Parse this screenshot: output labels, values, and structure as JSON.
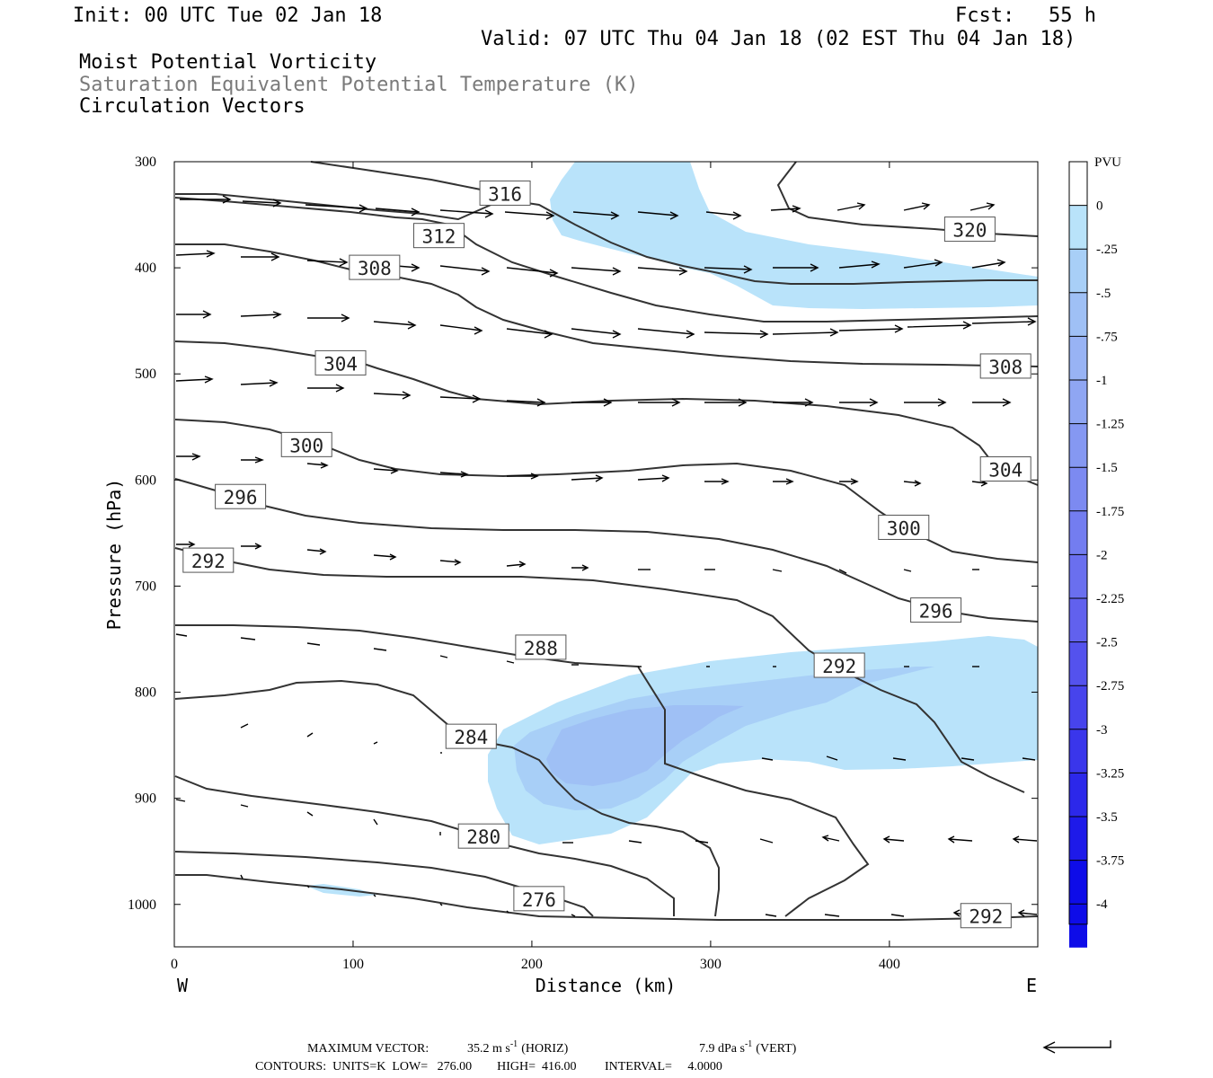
{
  "header": {
    "init": "Init: 00 UTC Tue 02 Jan 18",
    "fcst_label": "Fcst:",
    "fcst_value": "55 h",
    "valid": "Valid: 07 UTC Thu 04 Jan 18 (02 EST Thu 04 Jan 18)",
    "line1": "Moist Potential Vorticity",
    "line2": "Saturation Equivalent Potential Temperature (K)",
    "line3": "Circulation Vectors",
    "line2_color": "#7a7a7a"
  },
  "chart_data": {
    "type": "contour",
    "xlabel": "Distance (km)",
    "ylabel": "Pressure (hPa)",
    "xlim": [
      0,
      483
    ],
    "ylim": [
      1040,
      300
    ],
    "x_ticks": [
      "0",
      "100",
      "200",
      "300",
      "400"
    ],
    "y_ticks": [
      "300",
      "400",
      "500",
      "600",
      "700",
      "800",
      "900",
      "1000"
    ],
    "x_left_label": "W",
    "x_right_label": "E",
    "contour_labels": [
      {
        "text": "316",
        "x": 185,
        "p": 330
      },
      {
        "text": "312",
        "x": 148,
        "p": 370
      },
      {
        "text": "308",
        "x": 112,
        "p": 400
      },
      {
        "text": "320",
        "x": 445,
        "p": 364
      },
      {
        "text": "304",
        "x": 93,
        "p": 490
      },
      {
        "text": "308",
        "x": 465,
        "p": 493
      },
      {
        "text": "300",
        "x": 74,
        "p": 567
      },
      {
        "text": "304",
        "x": 465,
        "p": 590
      },
      {
        "text": "296",
        "x": 37,
        "p": 616
      },
      {
        "text": "300",
        "x": 408,
        "p": 645
      },
      {
        "text": "292",
        "x": 19,
        "p": 676
      },
      {
        "text": "296",
        "x": 426,
        "p": 723
      },
      {
        "text": "288",
        "x": 205,
        "p": 758
      },
      {
        "text": "292",
        "x": 372,
        "p": 775
      },
      {
        "text": "284",
        "x": 166,
        "p": 842
      },
      {
        "text": "280",
        "x": 173,
        "p": 936
      },
      {
        "text": "276",
        "x": 204,
        "p": 995
      },
      {
        "text": "292",
        "x": 454,
        "p": 1011
      }
    ],
    "colorbar": {
      "unit": "PVU",
      "labels": [
        "0",
        "-.25",
        "-.5",
        "-.75",
        "-1",
        "-1.25",
        "-1.5",
        "-1.75",
        "-2",
        "-2.25",
        "-2.5",
        "-2.75",
        "-3",
        "-3.25",
        "-3.5",
        "-3.75",
        "-4"
      ],
      "colors": [
        "#ffffff",
        "#b9e3fa",
        "#a8cff7",
        "#9fc0f5",
        "#98b3f4",
        "#8fa6f3",
        "#8598f2",
        "#7c8af1",
        "#737df0",
        "#6a6fef",
        "#6161ee",
        "#5452ed",
        "#4744ec",
        "#3a36eb",
        "#2c28ea",
        "#1e1ae9",
        "#0e0ce8"
      ]
    }
  },
  "footer": {
    "max_vector_label": "MAXIMUM VECTOR:",
    "max_vector_horiz": "35.2 m s",
    "horiz_tag": "(HORIZ)",
    "max_vector_vert": "7.9 dPa s",
    "vert_tag": "(VERT)",
    "sup": "-1",
    "contours": "CONTOURS:  UNITS=K  LOW=   276.00        HIGH=  416.00         INTERVAL=     4.0000"
  }
}
